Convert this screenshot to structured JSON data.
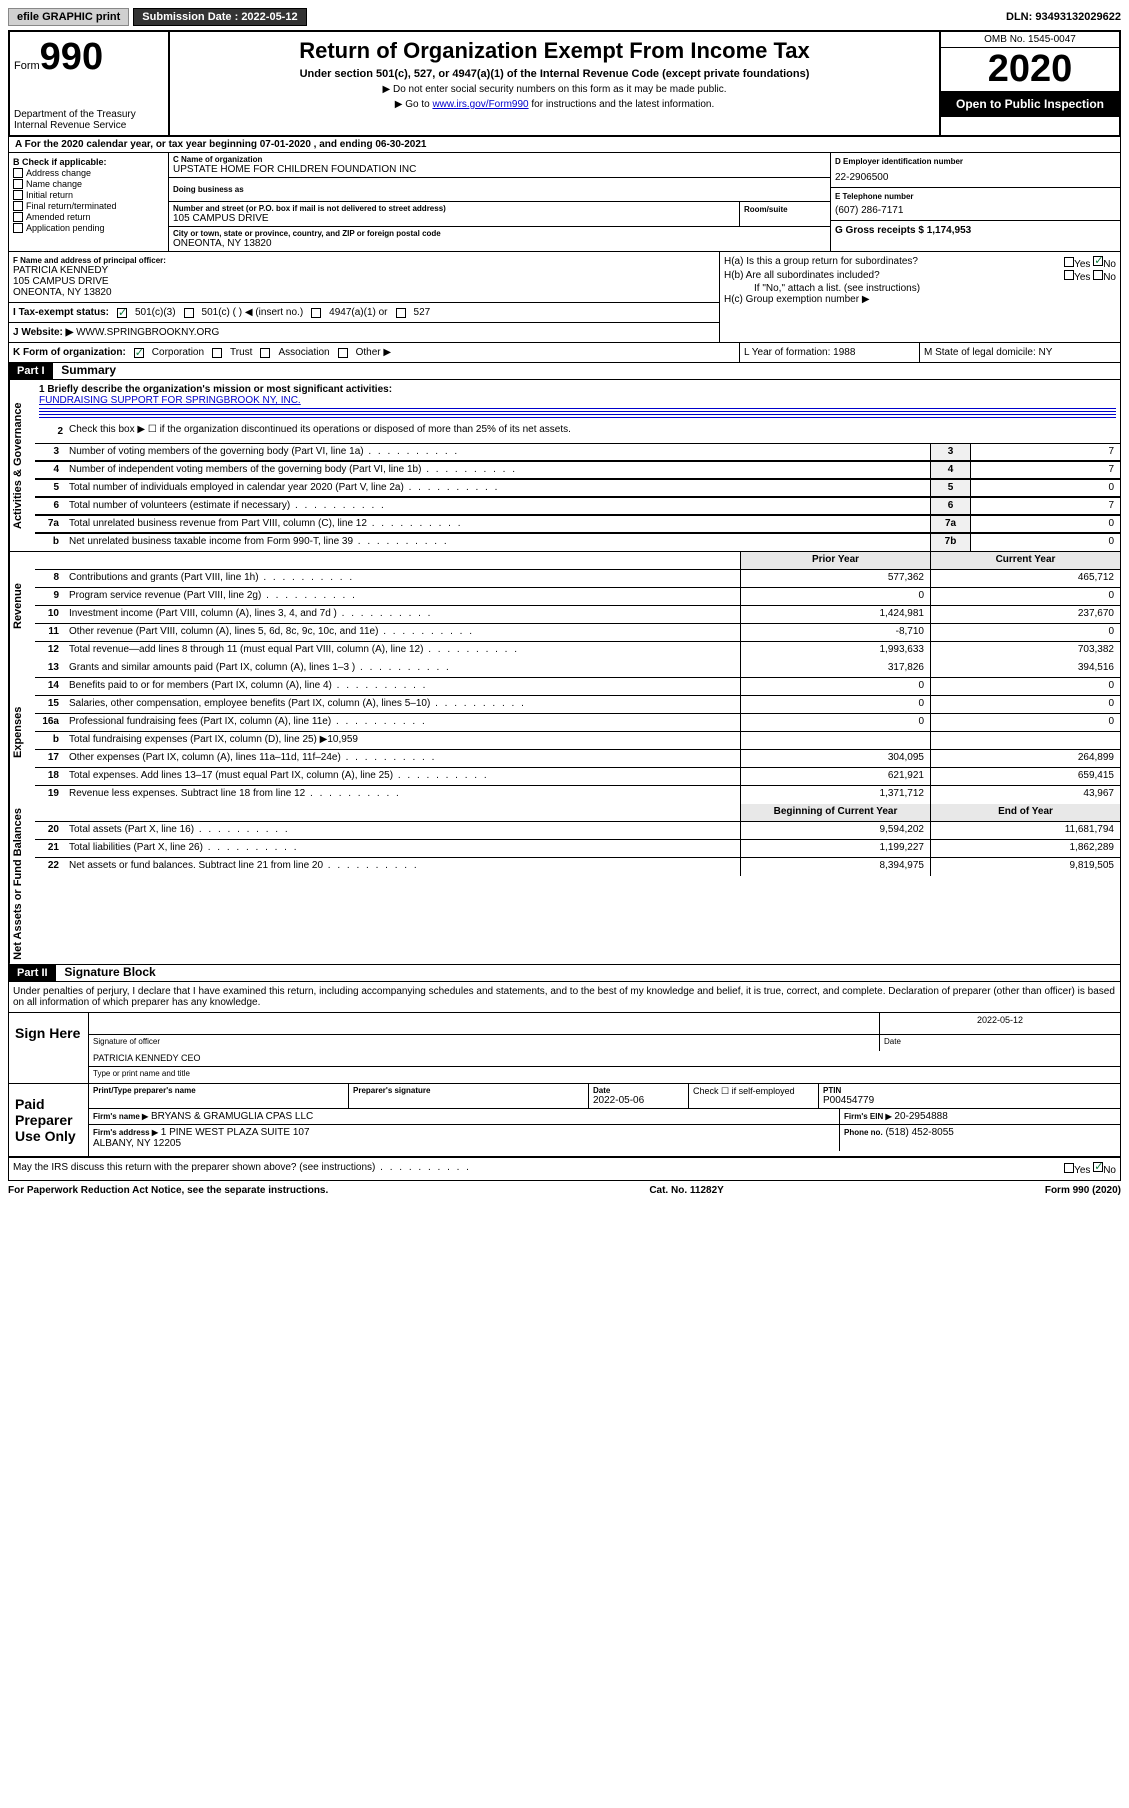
{
  "topbar": {
    "efile": "efile GRAPHIC print",
    "submission_label": "Submission Date : 2022-05-12",
    "dln": "DLN: 93493132029622"
  },
  "header": {
    "form_label": "Form",
    "form_num": "990",
    "dept": "Department of the Treasury\nInternal Revenue Service",
    "title": "Return of Organization Exempt From Income Tax",
    "subtitle": "Under section 501(c), 527, or 4947(a)(1) of the Internal Revenue Code (except private foundations)",
    "instr1": "▶ Do not enter social security numbers on this form as it may be made public.",
    "instr2_pre": "▶ Go to ",
    "instr2_link": "www.irs.gov/Form990",
    "instr2_post": " for instructions and the latest information.",
    "omb": "OMB No. 1545-0047",
    "year": "2020",
    "inspect": "Open to Public Inspection"
  },
  "line_a": "For the 2020 calendar year, or tax year beginning 07-01-2020    , and ending 06-30-2021",
  "box_b": {
    "label": "B Check if applicable:",
    "items": [
      "Address change",
      "Name change",
      "Initial return",
      "Final return/terminated",
      "Amended return",
      "Application pending"
    ]
  },
  "box_c": {
    "label": "C Name of organization",
    "name": "UPSTATE HOME FOR CHILDREN FOUNDATION INC",
    "dba_label": "Doing business as",
    "street_label": "Number and street (or P.O. box if mail is not delivered to street address)",
    "room_label": "Room/suite",
    "street": "105 CAMPUS DRIVE",
    "city_label": "City or town, state or province, country, and ZIP or foreign postal code",
    "city": "ONEONTA, NY  13820"
  },
  "box_d": {
    "label": "D Employer identification number",
    "value": "22-2906500"
  },
  "box_e": {
    "label": "E Telephone number",
    "value": "(607) 286-7171"
  },
  "box_g": {
    "label": "G Gross receipts $ 1,174,953"
  },
  "box_f": {
    "label": "F  Name and address of principal officer:",
    "name": "PATRICIA KENNEDY",
    "addr1": "105 CAMPUS DRIVE",
    "addr2": "ONEONTA, NY  13820"
  },
  "box_h": {
    "ha": "H(a)  Is this a group return for subordinates?",
    "hb": "H(b)  Are all subordinates included?",
    "hb_note": "If \"No,\" attach a list. (see instructions)",
    "hc": "H(c)  Group exemption number ▶",
    "yes": "Yes",
    "no": "No"
  },
  "box_i": {
    "label": "Tax-exempt status:",
    "opt1": "501(c)(3)",
    "opt2": "501(c) (   ) ◀ (insert no.)",
    "opt3": "4947(a)(1) or",
    "opt4": "527"
  },
  "box_j": {
    "label": "Website: ▶",
    "value": "WWW.SPRINGBROOKNY.ORG"
  },
  "box_k": {
    "label": "K Form of organization:",
    "corp": "Corporation",
    "trust": "Trust",
    "assoc": "Association",
    "other": "Other ▶"
  },
  "box_l": {
    "label": "L Year of formation: 1988"
  },
  "box_m": {
    "label": "M State of legal domicile: NY"
  },
  "part1": {
    "header": "Part I",
    "title": "Summary",
    "line1_label": "1  Briefly describe the organization's mission or most significant activities:",
    "line1_text": "FUNDRAISING SUPPORT FOR SPRINGBROOK NY, INC.",
    "line2": "Check this box ▶ ☐  if the organization discontinued its operations or disposed of more than 25% of its net assets.",
    "groups": {
      "activities": "Activities & Governance",
      "revenue": "Revenue",
      "expenses": "Expenses",
      "netassets": "Net Assets or Fund Balances"
    },
    "rows_top": [
      {
        "n": "3",
        "t": "Number of voting members of the governing body (Part VI, line 1a)",
        "k": "3",
        "v": "7"
      },
      {
        "n": "4",
        "t": "Number of independent voting members of the governing body (Part VI, line 1b)",
        "k": "4",
        "v": "7"
      },
      {
        "n": "5",
        "t": "Total number of individuals employed in calendar year 2020 (Part V, line 2a)",
        "k": "5",
        "v": "0"
      },
      {
        "n": "6",
        "t": "Total number of volunteers (estimate if necessary)",
        "k": "6",
        "v": "7"
      },
      {
        "n": "7a",
        "t": "Total unrelated business revenue from Part VIII, column (C), line 12",
        "k": "7a",
        "v": "0"
      },
      {
        "n": "b",
        "t": "Net unrelated business taxable income from Form 990-T, line 39",
        "k": "7b",
        "v": "0"
      }
    ],
    "col_prior": "Prior Year",
    "col_current": "Current Year",
    "rows_rev": [
      {
        "n": "8",
        "t": "Contributions and grants (Part VIII, line 1h)",
        "p": "577,362",
        "c": "465,712"
      },
      {
        "n": "9",
        "t": "Program service revenue (Part VIII, line 2g)",
        "p": "0",
        "c": "0"
      },
      {
        "n": "10",
        "t": "Investment income (Part VIII, column (A), lines 3, 4, and 7d )",
        "p": "1,424,981",
        "c": "237,670"
      },
      {
        "n": "11",
        "t": "Other revenue (Part VIII, column (A), lines 5, 6d, 8c, 9c, 10c, and 11e)",
        "p": "-8,710",
        "c": "0"
      },
      {
        "n": "12",
        "t": "Total revenue—add lines 8 through 11 (must equal Part VIII, column (A), line 12)",
        "p": "1,993,633",
        "c": "703,382"
      }
    ],
    "rows_exp": [
      {
        "n": "13",
        "t": "Grants and similar amounts paid (Part IX, column (A), lines 1–3 )",
        "p": "317,826",
        "c": "394,516"
      },
      {
        "n": "14",
        "t": "Benefits paid to or for members (Part IX, column (A), line 4)",
        "p": "0",
        "c": "0"
      },
      {
        "n": "15",
        "t": "Salaries, other compensation, employee benefits (Part IX, column (A), lines 5–10)",
        "p": "0",
        "c": "0"
      },
      {
        "n": "16a",
        "t": "Professional fundraising fees (Part IX, column (A), line 11e)",
        "p": "0",
        "c": "0"
      },
      {
        "n": "b",
        "t": "Total fundraising expenses (Part IX, column (D), line 25) ▶10,959",
        "p": "",
        "c": ""
      },
      {
        "n": "17",
        "t": "Other expenses (Part IX, column (A), lines 11a–11d, 11f–24e)",
        "p": "304,095",
        "c": "264,899"
      },
      {
        "n": "18",
        "t": "Total expenses. Add lines 13–17 (must equal Part IX, column (A), line 25)",
        "p": "621,921",
        "c": "659,415"
      },
      {
        "n": "19",
        "t": "Revenue less expenses. Subtract line 18 from line 12",
        "p": "1,371,712",
        "c": "43,967"
      }
    ],
    "col_begin": "Beginning of Current Year",
    "col_end": "End of Year",
    "rows_net": [
      {
        "n": "20",
        "t": "Total assets (Part X, line 16)",
        "p": "9,594,202",
        "c": "11,681,794"
      },
      {
        "n": "21",
        "t": "Total liabilities (Part X, line 26)",
        "p": "1,199,227",
        "c": "1,862,289"
      },
      {
        "n": "22",
        "t": "Net assets or fund balances. Subtract line 21 from line 20",
        "p": "8,394,975",
        "c": "9,819,505"
      }
    ]
  },
  "part2": {
    "header": "Part II",
    "title": "Signature Block",
    "decl": "Under penalties of perjury, I declare that I have examined this return, including accompanying schedules and statements, and to the best of my knowledge and belief, it is true, correct, and complete. Declaration of preparer (other than officer) is based on all information of which preparer has any knowledge.",
    "sign_here": "Sign Here",
    "sig_officer": "Signature of officer",
    "date_label": "Date",
    "sig_date": "2022-05-12",
    "officer_name": "PATRICIA KENNEDY CEO",
    "type_name": "Type or print name and title",
    "paid_prep": "Paid Preparer Use Only",
    "prep_name_label": "Print/Type preparer's name",
    "prep_sig_label": "Preparer's signature",
    "prep_date_label": "Date",
    "prep_date": "2022-05-06",
    "check_if": "Check ☐ if self-employed",
    "ptin_label": "PTIN",
    "ptin": "P00454779",
    "firm_name_label": "Firm's name    ▶",
    "firm_name": "BRYANS & GRAMUGLIA CPAS LLC",
    "firm_ein_label": "Firm's EIN ▶",
    "firm_ein": "20-2954888",
    "firm_addr_label": "Firm's address ▶",
    "firm_addr": "1 PINE WEST PLAZA SUITE 107\nALBANY, NY  12205",
    "phone_label": "Phone no.",
    "phone": "(518) 452-8055",
    "discuss": "May the IRS discuss this return with the preparer shown above? (see instructions)",
    "yes": "Yes",
    "no": "No"
  },
  "footer": {
    "left": "For Paperwork Reduction Act Notice, see the separate instructions.",
    "mid": "Cat. No. 11282Y",
    "right": "Form 990 (2020)"
  }
}
